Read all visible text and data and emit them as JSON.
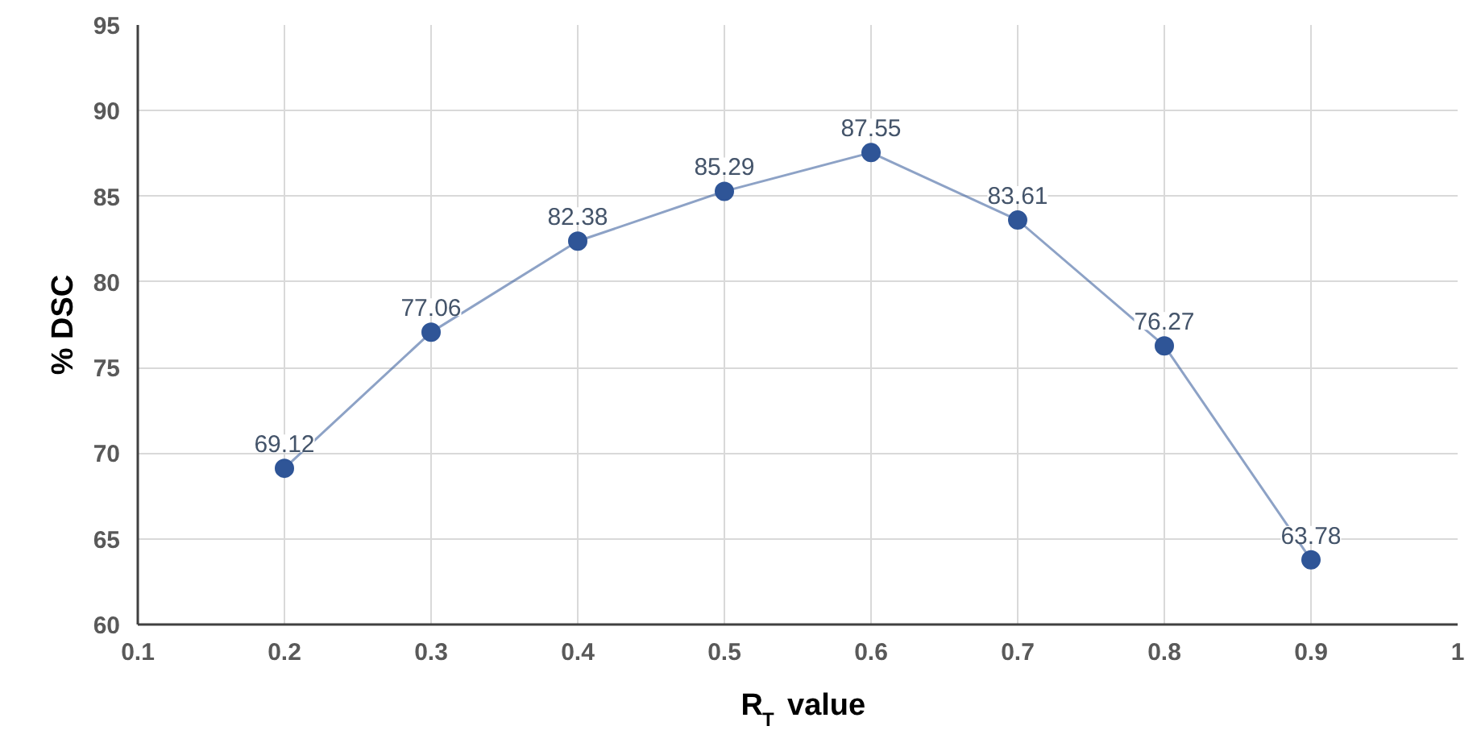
{
  "chart_data": {
    "type": "line",
    "xlabel": "R$_{T}$ value",
    "ylabel": "% DSC",
    "x": [
      0.2,
      0.3,
      0.4,
      0.5,
      0.6,
      0.7,
      0.8,
      0.9
    ],
    "series": [
      {
        "color": "#2f5597",
        "values": [
          69.12,
          77.06,
          82.38,
          85.29,
          87.55,
          83.61,
          76.27,
          63.78
        ]
      }
    ],
    "xlim": [
      0.1,
      1
    ],
    "xticks": [
      0.1,
      0.2,
      0.3,
      0.4,
      0.5,
      0.6,
      0.7,
      0.8,
      0.9,
      1
    ],
    "ylim": [
      60,
      95
    ],
    "yticks": [
      60,
      65,
      70,
      75,
      80,
      85,
      90,
      95
    ],
    "grid": true,
    "marker": "circle",
    "line_style": "solid",
    "data_labels": true
  }
}
